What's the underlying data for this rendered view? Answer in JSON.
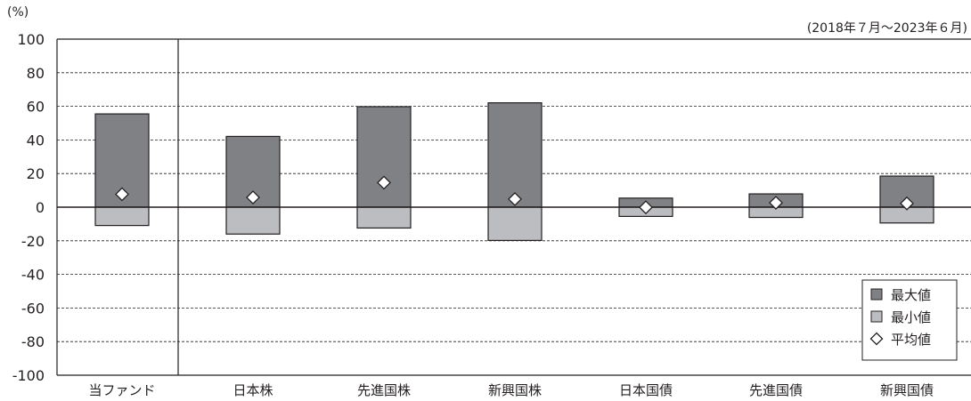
{
  "chart_data": {
    "type": "bar",
    "title": "",
    "xlabel": "",
    "ylabel": "",
    "unit_label": "(%)",
    "period_label": "(2018年７月～2023年６月)",
    "ylim": [
      -100,
      100
    ],
    "yticks": [
      100,
      80,
      60,
      40,
      20,
      0,
      -20,
      -40,
      -60,
      -80,
      -100
    ],
    "grid": true,
    "legend_position": "bottom-right",
    "categories": [
      "当ファンド",
      "日本株",
      "先進国株",
      "新興国株",
      "日本国債",
      "先進国債",
      "新興国債"
    ],
    "series": [
      {
        "name": "最大値",
        "values": [
          55.5,
          42.1,
          59.8,
          62.1,
          5.4,
          7.9,
          18.5
        ]
      },
      {
        "name": "最小値",
        "values": [
          -10.9,
          -16.0,
          -12.4,
          -19.8,
          -5.5,
          -6.1,
          -9.4
        ]
      },
      {
        "name": "平均値",
        "values": [
          7.7,
          5.8,
          14.6,
          4.8,
          -0.1,
          2.6,
          2.2
        ]
      }
    ],
    "colors": {
      "max": "#808184",
      "min": "#bcbdc0",
      "avg": "#ffffff",
      "axis": "#231f20",
      "grid": "#231f20"
    }
  }
}
